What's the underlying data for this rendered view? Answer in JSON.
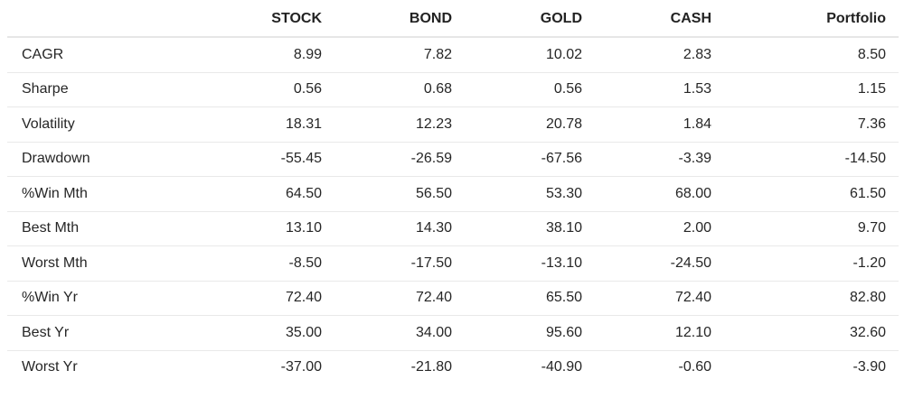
{
  "table": {
    "headers": [
      "",
      "STOCK",
      "BOND",
      "GOLD",
      "CASH",
      "Portfolio"
    ],
    "rows": [
      {
        "label": "CAGR",
        "values": [
          "8.99",
          "7.82",
          "10.02",
          "2.83",
          "8.50"
        ]
      },
      {
        "label": "Sharpe",
        "values": [
          "0.56",
          "0.68",
          "0.56",
          "1.53",
          "1.15"
        ]
      },
      {
        "label": "Volatility",
        "values": [
          "18.31",
          "12.23",
          "20.78",
          "1.84",
          "7.36"
        ]
      },
      {
        "label": "Drawdown",
        "values": [
          "-55.45",
          "-26.59",
          "-67.56",
          "-3.39",
          "-14.50"
        ]
      },
      {
        "label": "%Win Mth",
        "values": [
          "64.50",
          "56.50",
          "53.30",
          "68.00",
          "61.50"
        ]
      },
      {
        "label": "Best Mth",
        "values": [
          "13.10",
          "14.30",
          "38.10",
          "2.00",
          "9.70"
        ]
      },
      {
        "label": "Worst Mth",
        "values": [
          "-8.50",
          "-17.50",
          "-13.10",
          "-24.50",
          "-1.20"
        ]
      },
      {
        "label": "%Win Yr",
        "values": [
          "72.40",
          "72.40",
          "65.50",
          "72.40",
          "82.80"
        ]
      },
      {
        "label": "Best Yr",
        "values": [
          "35.00",
          "34.00",
          "95.60",
          "12.10",
          "32.60"
        ]
      },
      {
        "label": "Worst Yr",
        "values": [
          "-37.00",
          "-21.80",
          "-40.90",
          "-0.60",
          "-3.90"
        ]
      }
    ]
  }
}
